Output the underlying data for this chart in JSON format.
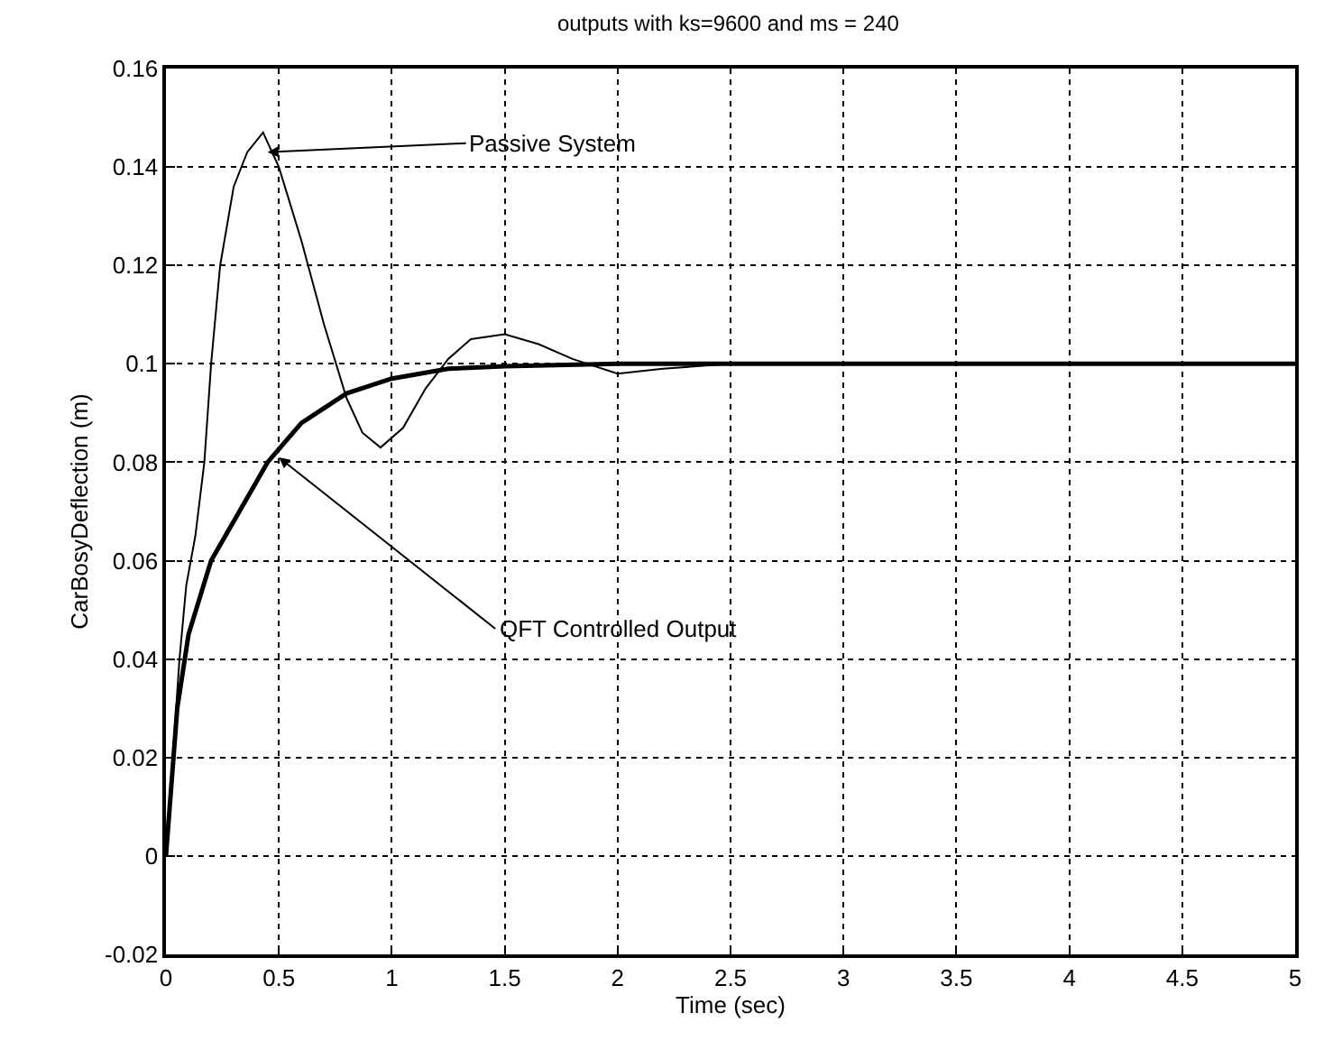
{
  "chart_data": {
    "type": "line",
    "title": "outputs with ks=9600 and ms = 240",
    "xlabel": "Time (sec)",
    "ylabel": "CarBosyDeflection (m)",
    "series": [
      {
        "color": "#000000",
        "x": [
          0,
          0.03,
          0.06,
          0.09,
          0.13,
          0.17,
          0.2,
          0.24,
          0.3,
          0.36,
          0.43,
          0.5,
          0.6,
          0.7,
          0.8,
          0.87,
          0.95,
          1.05,
          1.15,
          1.25,
          1.35,
          1.5,
          1.65,
          1.8,
          2.0,
          2.2,
          2.5,
          5
        ],
        "values": [
          0,
          0.02,
          0.04,
          0.055,
          0.065,
          0.08,
          0.1,
          0.12,
          0.136,
          0.143,
          0.147,
          0.14,
          0.125,
          0.108,
          0.093,
          0.086,
          0.083,
          0.087,
          0.095,
          0.101,
          0.105,
          0.106,
          0.104,
          0.101,
          0.098,
          0.099,
          0.1,
          0.1
        ]
      },
      {
        "color": "#000000",
        "x": [
          0,
          0.05,
          0.1,
          0.2,
          0.3,
          0.45,
          0.6,
          0.8,
          1.0,
          1.25,
          1.5,
          2,
          5
        ],
        "values": [
          0,
          0.03,
          0.045,
          0.06,
          0.068,
          0.08,
          0.088,
          0.094,
          0.097,
          0.099,
          0.0995,
          0.1,
          0.1
        ]
      }
    ],
    "annotations": [
      {
        "text": "Passive System",
        "x": 0.45,
        "y": 0.143
      },
      {
        "text": "QFT Controlled Output",
        "x": 0.5,
        "y": 0.081
      }
    ],
    "xlim": [
      0,
      5
    ],
    "xticks": [
      0,
      0.5,
      1,
      1.5,
      2,
      2.5,
      3,
      3.5,
      4,
      4.5,
      5
    ],
    "ylim": [
      -0.02,
      0.16
    ],
    "yticks": [
      -0.02,
      0,
      0.02,
      0.04,
      0.06,
      0.08,
      0.1,
      0.12,
      0.14,
      0.16
    ],
    "grid": true,
    "marker": "none",
    "line_style": "solid"
  }
}
